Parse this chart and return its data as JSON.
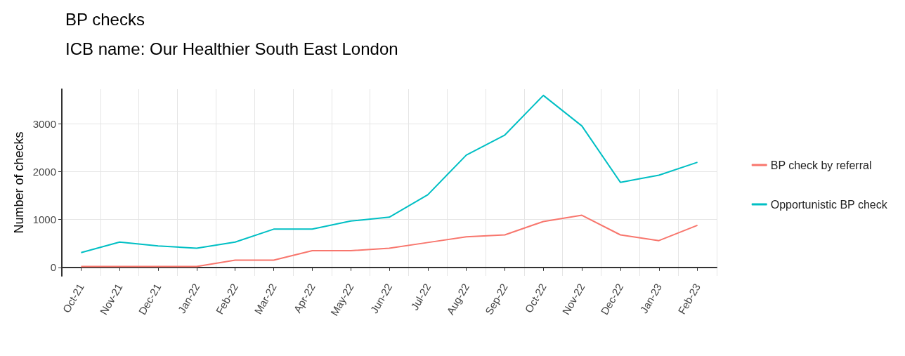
{
  "chart_data": {
    "type": "line",
    "title": "BP checks",
    "subtitle": "ICB name: Our Healthier South East London",
    "ylabel": "Number of checks",
    "categories": [
      "Oct-21",
      "Nov-21",
      "Dec-21",
      "Jan-22",
      "Feb-22",
      "Mar-22",
      "Apr-22",
      "May-22",
      "Jun-22",
      "Jul-22",
      "Aug-22",
      "Sep-22",
      "Oct-22",
      "Nov-22",
      "Dec-22",
      "Jan-23",
      "Feb-23"
    ],
    "series": [
      {
        "name": "BP check by referral",
        "color": "#f8766d",
        "values": [
          20,
          20,
          20,
          20,
          150,
          150,
          350,
          350,
          400,
          520,
          640,
          680,
          960,
          1090,
          680,
          560,
          880
        ]
      },
      {
        "name": "Opportunistic BP check",
        "color": "#00bfc4",
        "values": [
          310,
          530,
          450,
          400,
          530,
          800,
          800,
          970,
          1050,
          1520,
          2350,
          2770,
          3600,
          2960,
          1780,
          1930,
          2200
        ]
      }
    ],
    "ylim": [
      -180,
      3730
    ],
    "yticks": [
      0,
      1000,
      2000,
      3000
    ],
    "grid": true,
    "legend": "right",
    "marker": "none",
    "line_style": "solid"
  }
}
